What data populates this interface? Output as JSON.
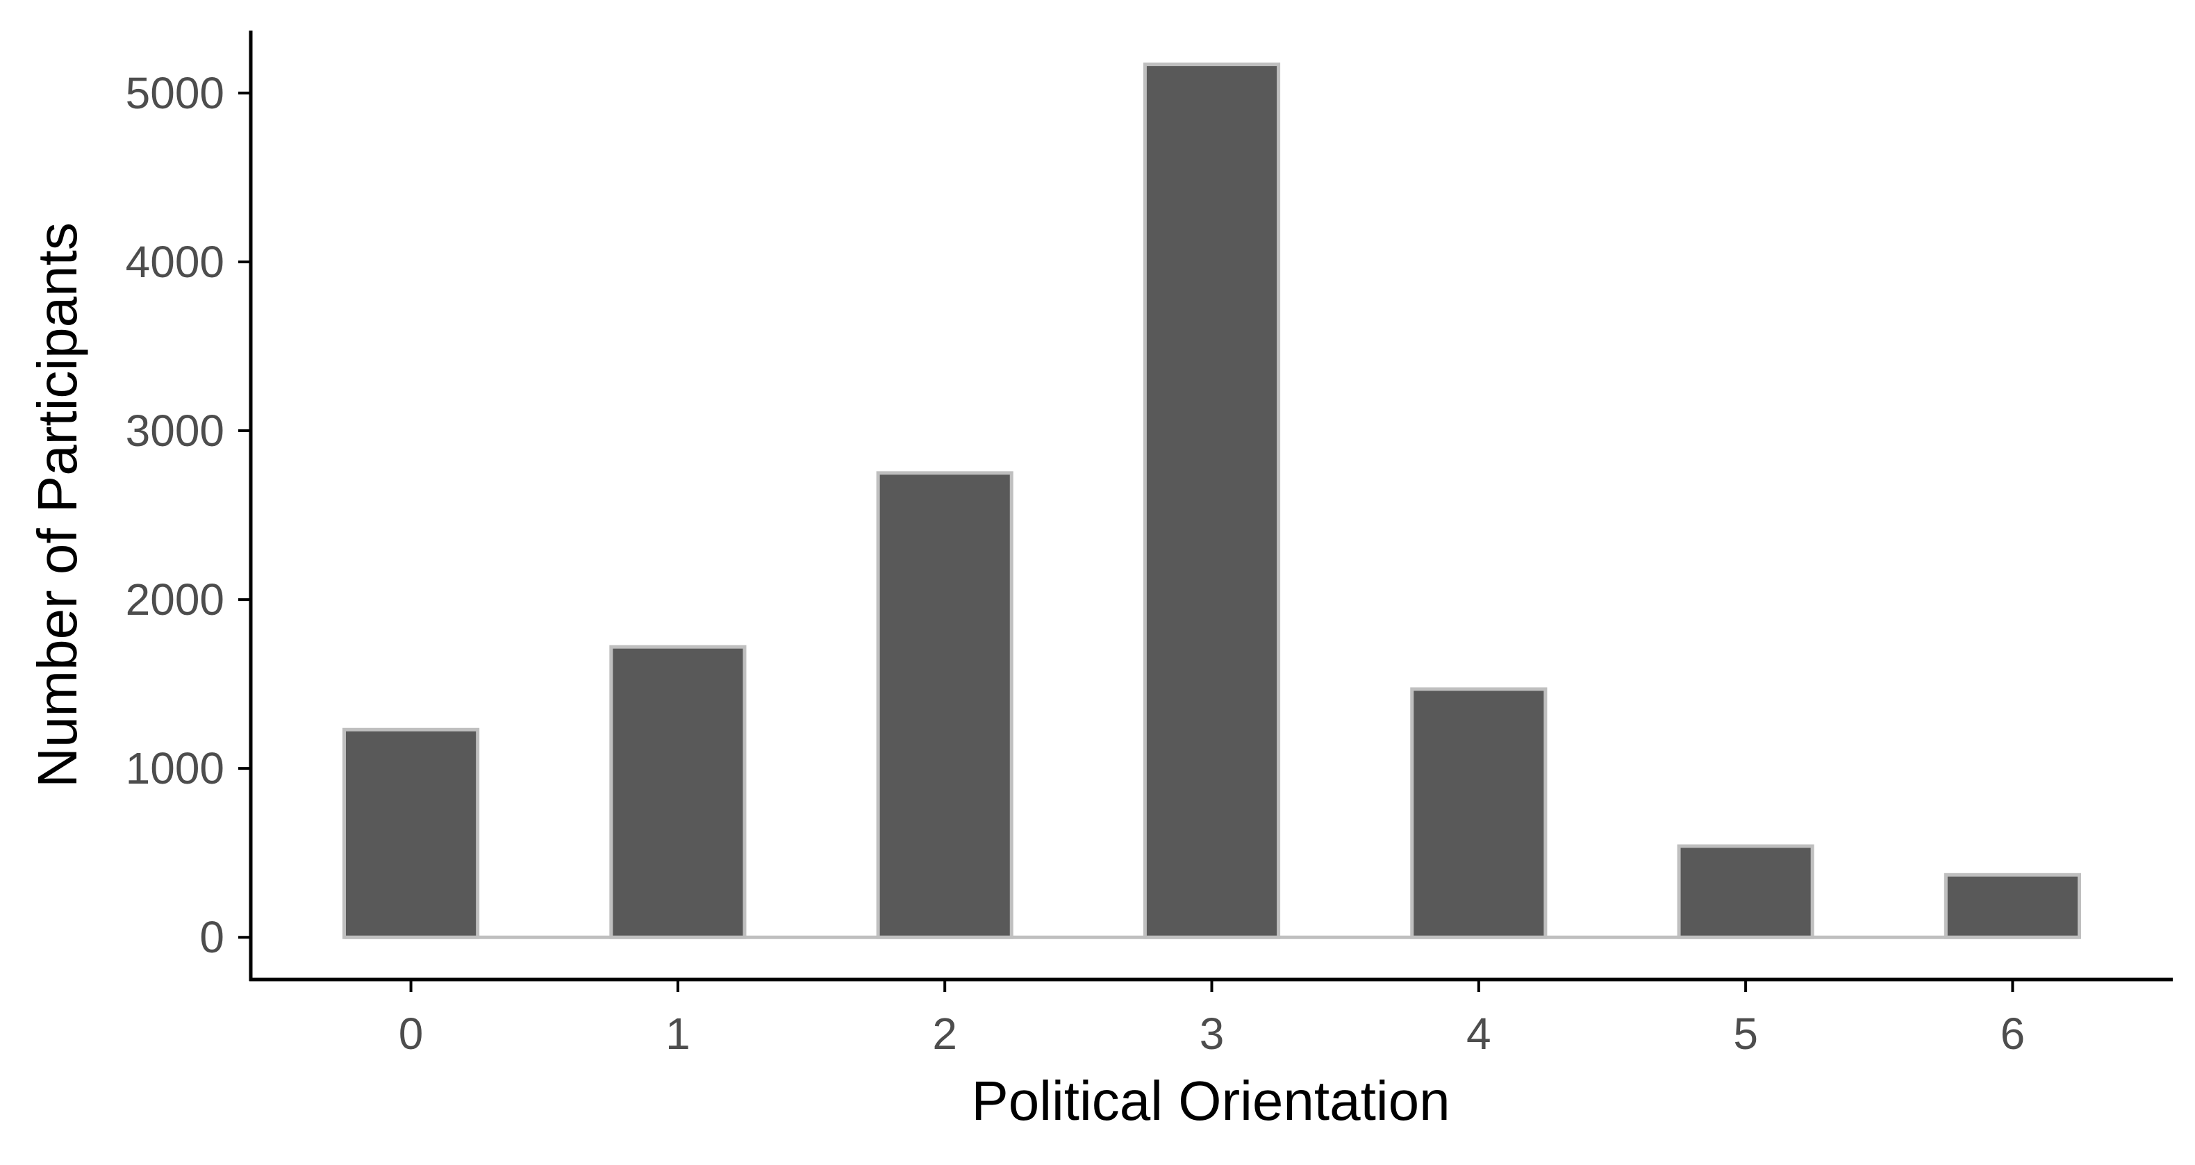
{
  "chart_data": {
    "type": "bar",
    "title": "",
    "xlabel": "Political Orientation",
    "ylabel": "Number of Participants",
    "categories": [
      "0",
      "1",
      "2",
      "3",
      "4",
      "5",
      "6"
    ],
    "values": [
      1230,
      1720,
      2750,
      5170,
      1470,
      540,
      370
    ],
    "ylim": [
      -250,
      5370
    ],
    "yticks": [
      0,
      1000,
      2000,
      3000,
      4000,
      5000
    ],
    "ytick_labels": [
      "0",
      "1000",
      "2000",
      "3000",
      "4000",
      "5000"
    ],
    "grid": false,
    "legend": "none",
    "colors": {
      "bar_fill": "#595959",
      "bar_outline": "#bfbfbf",
      "axis": "#000000",
      "tick_text": "#4d4d4d",
      "title_text": "#000000"
    }
  }
}
